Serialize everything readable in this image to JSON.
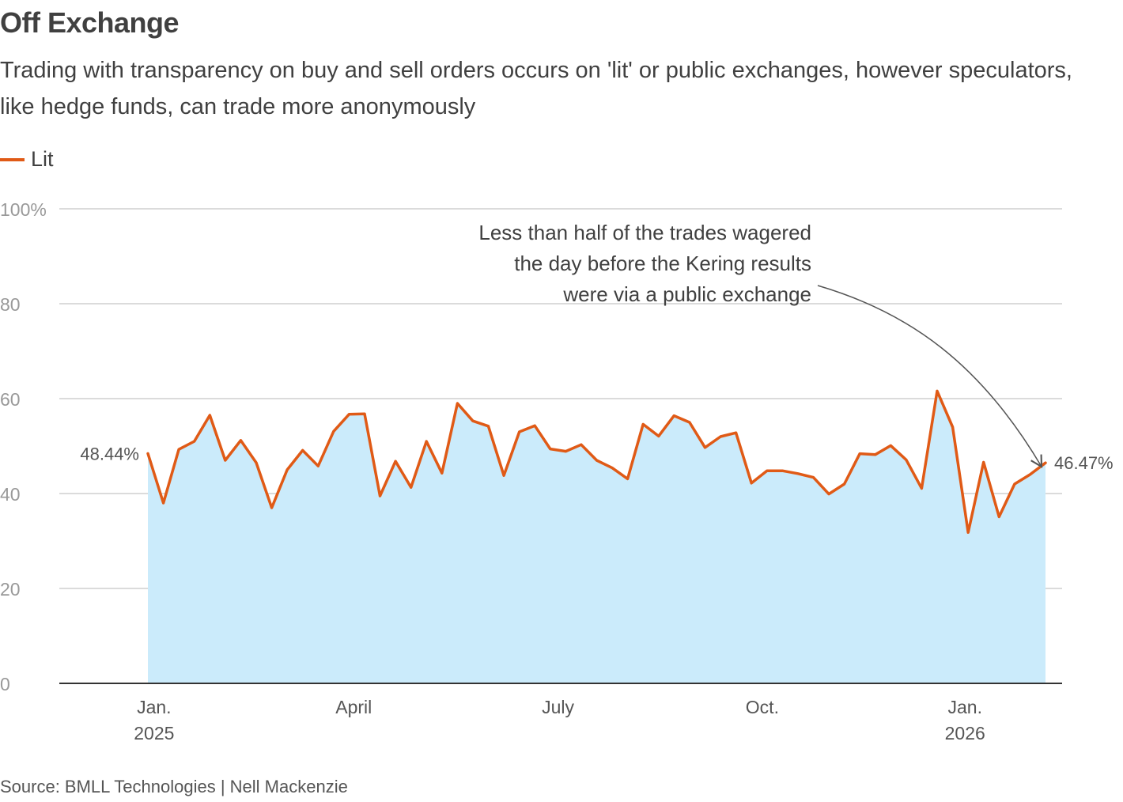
{
  "header": {
    "title": "Off Exchange",
    "subtitle": "Trading with transparency on buy and sell orders occurs on 'lit' or public exchanges, however speculators, like hedge funds, can trade more anonymously"
  },
  "legend": {
    "label": "Lit",
    "color": "#e05a16"
  },
  "footer": {
    "source": "Source: BMLL Technologies | Nell Mackenzie"
  },
  "chart_data": {
    "type": "area",
    "title": "Off Exchange",
    "xlabel": "",
    "ylabel": "",
    "ylim": [
      0,
      100
    ],
    "yticks": [
      {
        "value": 100,
        "label": "100%"
      },
      {
        "value": 80,
        "label": "80"
      },
      {
        "value": 60,
        "label": "60"
      },
      {
        "value": 40,
        "label": "40"
      },
      {
        "value": 20,
        "label": "20"
      },
      {
        "value": 0,
        "label": "0"
      }
    ],
    "xticks": [
      {
        "week": 0.4,
        "line1": "Jan.",
        "line2": "2025"
      },
      {
        "week": 13.3,
        "line1": "April",
        "line2": ""
      },
      {
        "week": 26.5,
        "line1": "July",
        "line2": ""
      },
      {
        "week": 39.7,
        "line1": "Oct.",
        "line2": ""
      },
      {
        "week": 52.8,
        "line1": "Jan.",
        "line2": "2026"
      }
    ],
    "series": [
      {
        "name": "Lit",
        "color": "#e05a16",
        "fill": "#cbebfb",
        "values": [
          48.44,
          38.0,
          49.3,
          51.0,
          56.5,
          47.0,
          51.2,
          46.5,
          37.0,
          45.0,
          49.1,
          45.8,
          53.1,
          56.7,
          56.8,
          39.5,
          46.8,
          41.3,
          51.0,
          44.3,
          59.0,
          55.3,
          54.2,
          43.8,
          53.0,
          54.3,
          49.4,
          48.9,
          50.3,
          47.0,
          45.4,
          43.1,
          54.6,
          52.1,
          56.4,
          55.0,
          49.7,
          52.0,
          52.8,
          42.2,
          44.8,
          44.8,
          44.2,
          43.4,
          39.9,
          42.0,
          48.4,
          48.2,
          50.1,
          47.1,
          41.1,
          61.6,
          54.0,
          31.8,
          46.6,
          35.1,
          42.0,
          44.0,
          46.47
        ]
      }
    ],
    "annotations": {
      "start_label": "48.44%",
      "end_label": "46.47%",
      "callout": {
        "line1": "Less than half of the trades wagered",
        "line2": "the day before the Kering results",
        "line3": "were via a public exchange"
      }
    }
  }
}
